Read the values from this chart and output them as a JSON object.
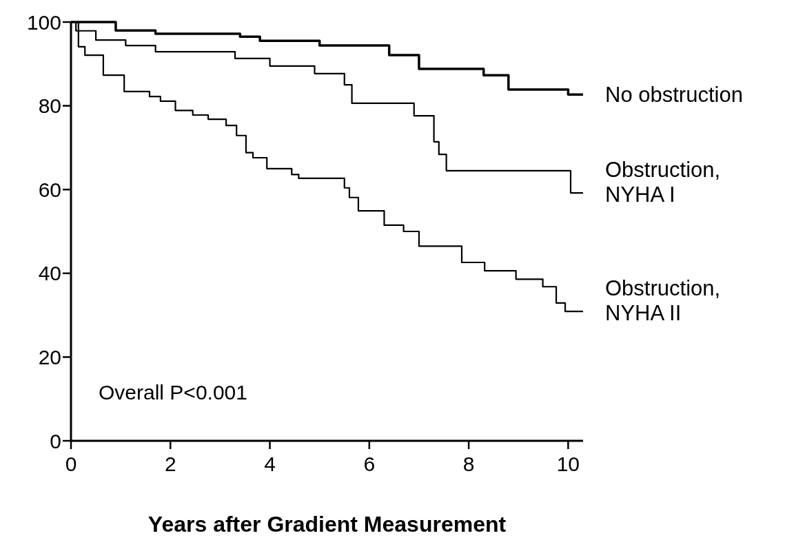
{
  "chart_data": {
    "type": "step",
    "xlabel": "Years after Gradient Measurement",
    "xlim": [
      0,
      10.3
    ],
    "xticks": [
      0,
      2,
      4,
      6,
      8,
      10
    ],
    "ylim": [
      0,
      100
    ],
    "yticks": [
      0,
      20,
      40,
      60,
      80,
      100
    ],
    "grid": false,
    "marker": "none",
    "line_style": "solid",
    "annotations": [
      "Overall P<0.001"
    ],
    "series": [
      {
        "name": "No obstruction",
        "color": "#000000",
        "x": [
          0,
          0.9,
          1.7,
          3.4,
          3.8,
          5.0,
          6.4,
          7.0,
          8.3,
          8.8,
          10.0,
          10.3
        ],
        "values": [
          100,
          98,
          97.2,
          96.5,
          95.5,
          94.4,
          92.1,
          88.8,
          87.3,
          83.9,
          82.7,
          82.7
        ]
      },
      {
        "name": "Obstruction, NYHA I",
        "color": "#000000",
        "x": [
          0,
          0.1,
          0.5,
          1.1,
          1.7,
          3.3,
          4.0,
          4.9,
          5.5,
          5.65,
          6.9,
          7.3,
          7.4,
          7.55,
          10.05,
          10.3
        ],
        "values": [
          100,
          97.9,
          95.7,
          94.4,
          92.9,
          91.3,
          89.5,
          87.7,
          85.0,
          80.6,
          77.6,
          71.4,
          68.4,
          64.5,
          59.2,
          59.2
        ]
      },
      {
        "name": "Obstruction, NYHA II",
        "color": "#000000",
        "x": [
          0,
          0.15,
          0.28,
          0.65,
          1.07,
          1.58,
          1.8,
          2.1,
          2.45,
          2.76,
          3.12,
          3.33,
          3.52,
          3.66,
          3.94,
          4.44,
          4.58,
          5.5,
          5.6,
          5.78,
          6.3,
          6.69,
          7.0,
          7.86,
          8.32,
          8.95,
          9.49,
          9.76,
          9.94,
          10.3
        ],
        "values": [
          100,
          94.1,
          92.1,
          87.3,
          83.4,
          82.2,
          81.1,
          78.9,
          77.8,
          76.8,
          75.3,
          72.9,
          68.8,
          67.6,
          65.0,
          63.6,
          62.7,
          60.4,
          58.1,
          54.9,
          51.5,
          50.0,
          46.5,
          42.6,
          40.6,
          38.6,
          36.8,
          32.9,
          30.9,
          30.9
        ]
      }
    ]
  }
}
